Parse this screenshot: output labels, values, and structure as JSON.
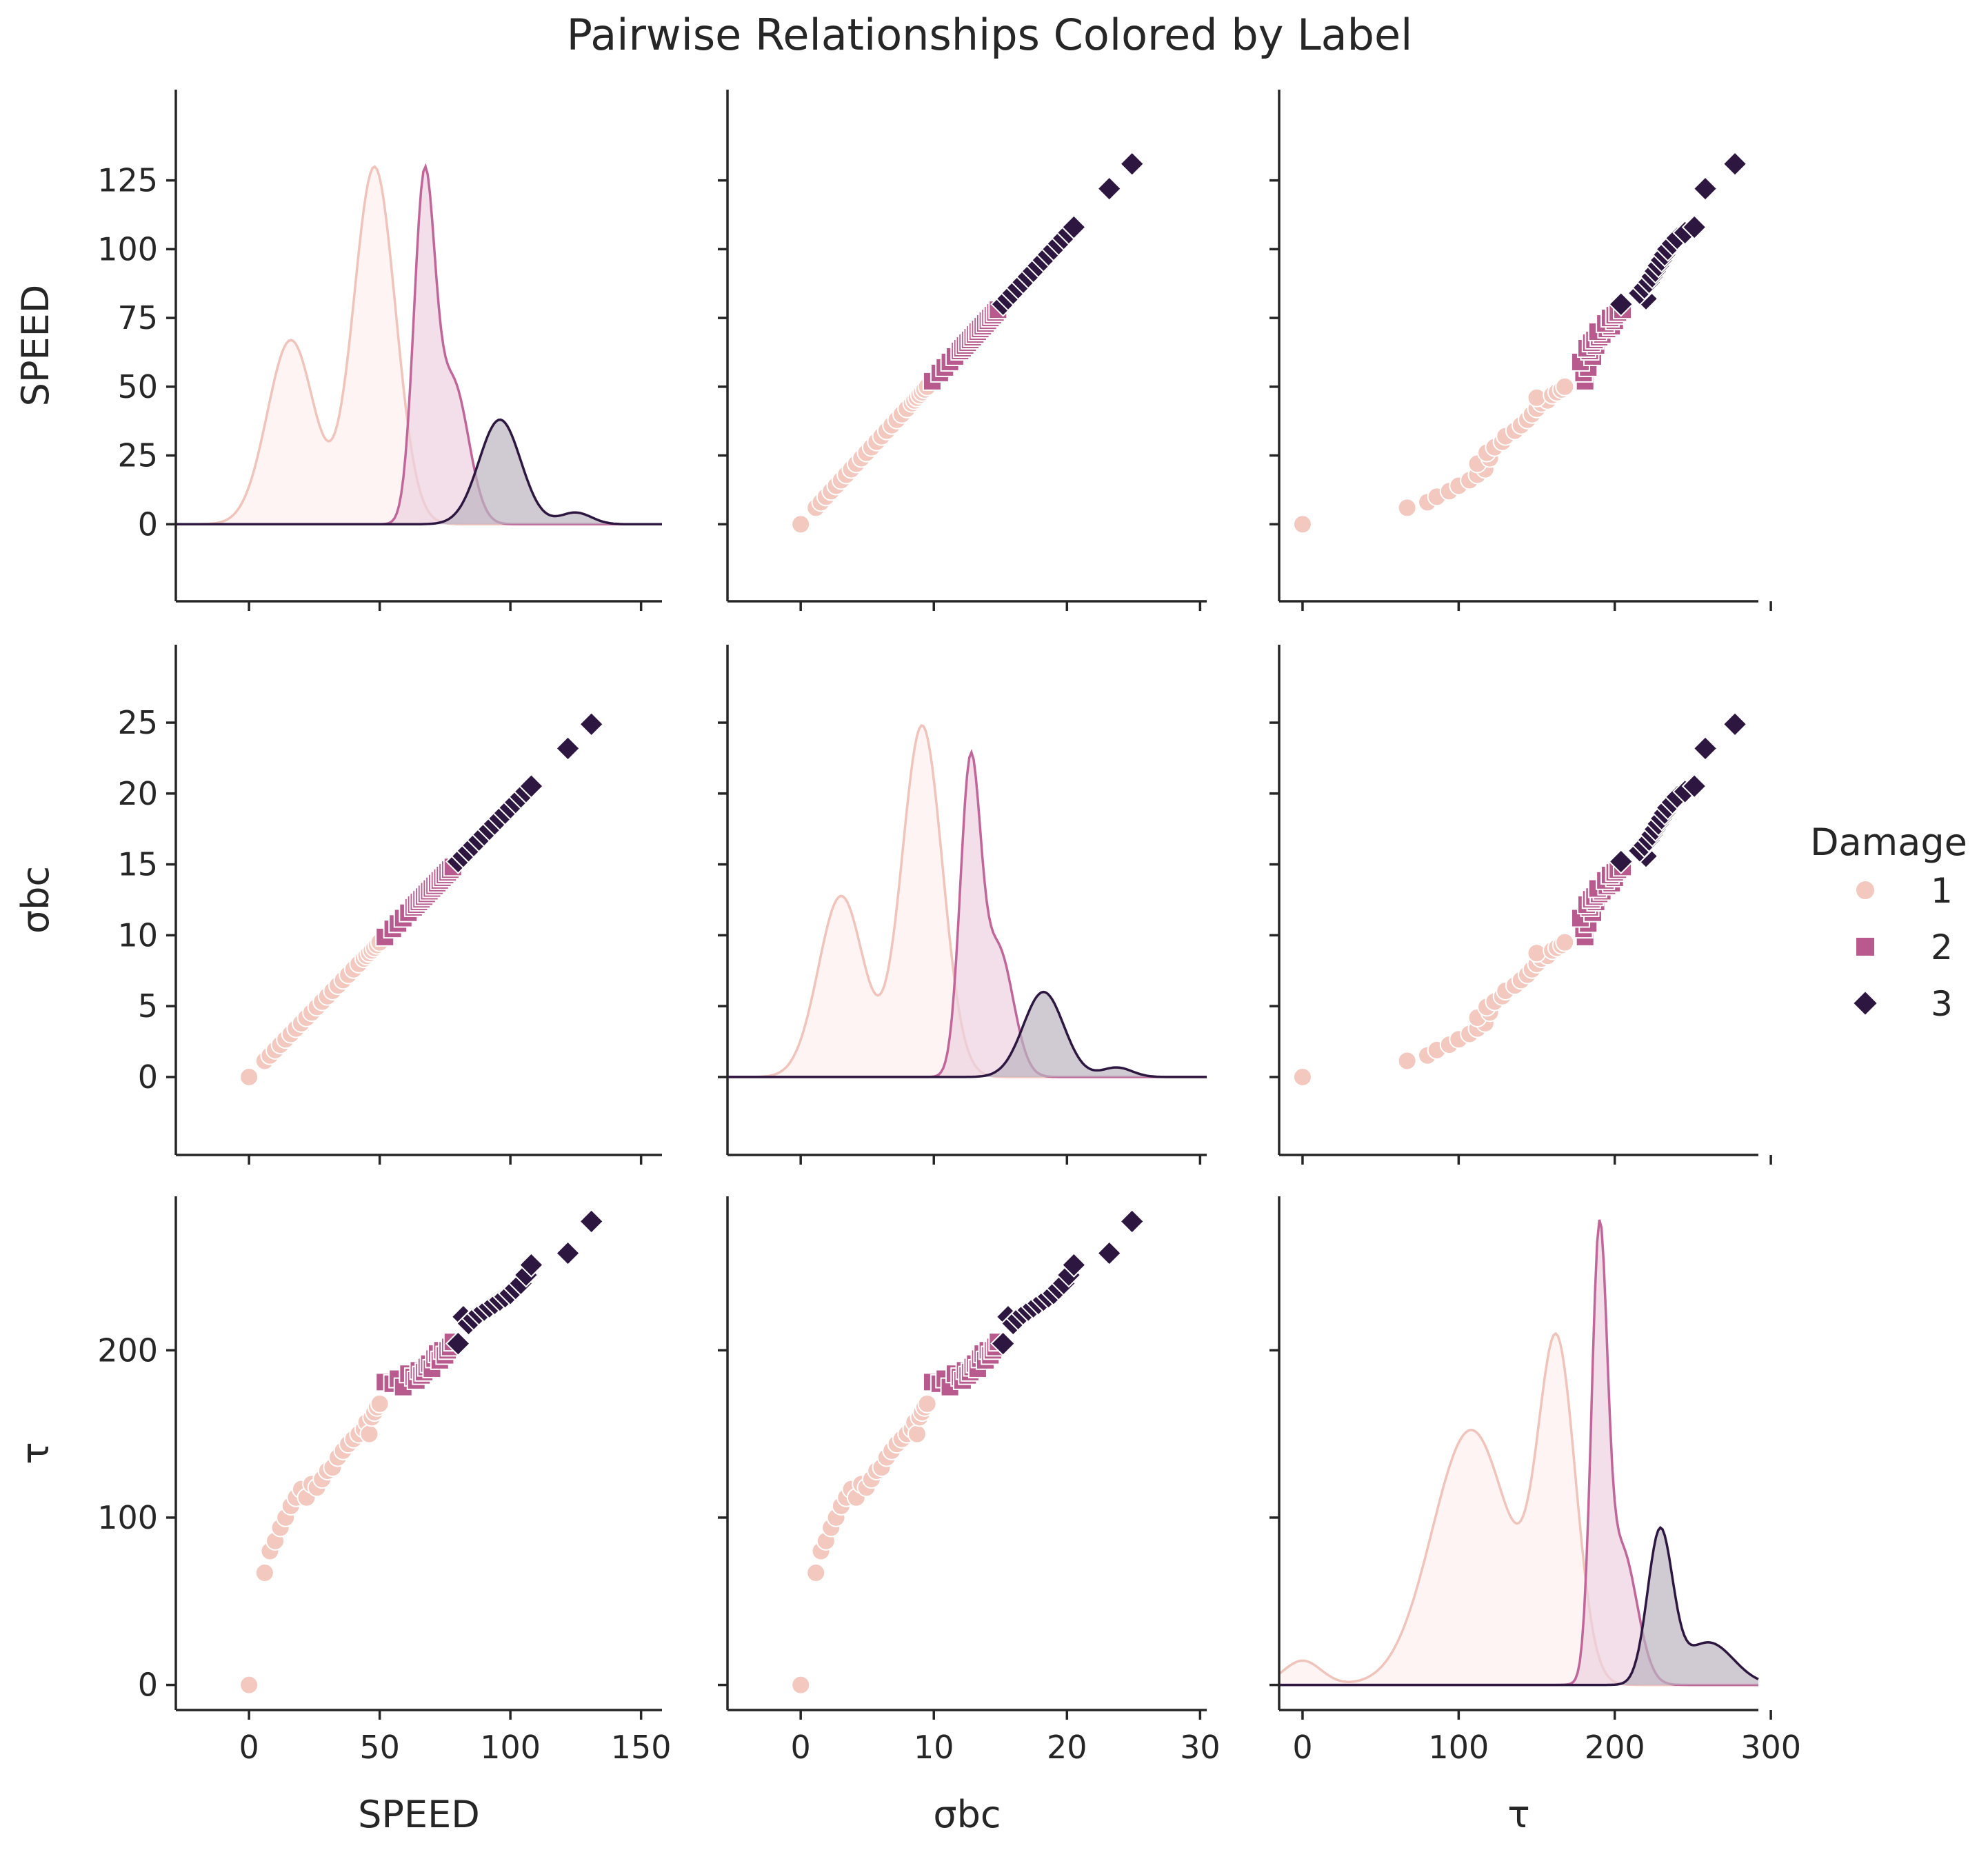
{
  "chart_data": {
    "type": "scatter",
    "kind": "pairplot",
    "title": "Pairwise Relationships Colored by Label",
    "variables": [
      "SPEED",
      "σbc",
      "τ"
    ],
    "axis_ranges": {
      "SPEED": [
        -28,
        158
      ],
      "σbc": [
        -5.5,
        30.5
      ],
      "τ": [
        -15,
        292
      ]
    },
    "ticks": {
      "SPEED": [
        0,
        25,
        50,
        75,
        100,
        125
      ],
      "SPEED_x": [
        0,
        50,
        100,
        150
      ],
      "σbc": [
        0,
        5,
        10,
        15,
        20,
        25
      ],
      "σbc_x": [
        0,
        10,
        20,
        30
      ],
      "τ": [
        0,
        100,
        200
      ],
      "τ_x": [
        0,
        100,
        200,
        300
      ]
    },
    "legend": {
      "title": "Damage",
      "placement": "right",
      "entries": [
        {
          "label": "1",
          "marker": "circle",
          "color": "#f3c8bf"
        },
        {
          "label": "2",
          "marker": "square",
          "color": "#b85a8e"
        },
        {
          "label": "3",
          "marker": "diamond",
          "color": "#2d1640"
        }
      ]
    },
    "colors": {
      "1": "#f3c8bf",
      "2": "#b85a8e",
      "3": "#2d1640",
      "line1": "#f0c4ba",
      "line2": "#c0669b",
      "line3": "#2d1640",
      "fill1": "#fdf0ee",
      "fill2": "#ecd1df",
      "fill3": "#bcb3c0"
    },
    "series": [
      {
        "name": "1",
        "speed": [
          0,
          6,
          8,
          10,
          12,
          14,
          16,
          18,
          20,
          22,
          24,
          26,
          28,
          30,
          32,
          34,
          36,
          38,
          40,
          42,
          44,
          45,
          46,
          47,
          48,
          49,
          50
        ],
        "tau": [
          0,
          67,
          80,
          86,
          94,
          100,
          107,
          112,
          117,
          112,
          120,
          118,
          123,
          128,
          130,
          136,
          140,
          144,
          147,
          150,
          153,
          157,
          150,
          160,
          163,
          166,
          168
        ]
      },
      {
        "name": "2",
        "speed": [
          52,
          55,
          57,
          59,
          61,
          63,
          64,
          65,
          66,
          67,
          68,
          69,
          70,
          71,
          72,
          73,
          74,
          75,
          76,
          77,
          78
        ],
        "tau": [
          181,
          180,
          183,
          178,
          186,
          184,
          182,
          188,
          185,
          187,
          190,
          192,
          189,
          195,
          198,
          194,
          200,
          197,
          200,
          202,
          205
        ]
      },
      {
        "name": "3",
        "speed": [
          80,
          82,
          84,
          86,
          88,
          90,
          92,
          94,
          96,
          98,
          100,
          102,
          104,
          106,
          108,
          122,
          131
        ],
        "tau": [
          204,
          220,
          216,
          219,
          222,
          224,
          226,
          228,
          230,
          232,
          234,
          237,
          240,
          245,
          251,
          258,
          277
        ]
      }
    ],
    "sigma_ratio": 0.19,
    "kde": {
      "SPEED": {
        "1": [
          {
            "mu": 16,
            "sigma": 9,
            "w": 0.34
          },
          {
            "mu": 48,
            "sigma": 8,
            "w": 0.66
          }
        ],
        "2": [
          {
            "mu": 67,
            "sigma": 4,
            "w": 0.7
          },
          {
            "mu": 78,
            "sigma": 6,
            "w": 0.3
          }
        ],
        "3": [
          {
            "mu": 96,
            "sigma": 8,
            "w": 0.9
          },
          {
            "mu": 125,
            "sigma": 6,
            "w": 0.1
          }
        ]
      },
      "τ": {
        "1": [
          {
            "mu": 0,
            "sigma": 12,
            "w": 0.04
          },
          {
            "mu": 108,
            "sigma": 25,
            "w": 0.42
          },
          {
            "mu": 163,
            "sigma": 12,
            "w": 0.54
          }
        ],
        "2": [
          {
            "mu": 190,
            "sigma": 5,
            "w": 0.75
          },
          {
            "mu": 204,
            "sigma": 10,
            "w": 0.25
          }
        ],
        "3": [
          {
            "mu": 229,
            "sigma": 8,
            "w": 0.78
          },
          {
            "mu": 260,
            "sigma": 16,
            "w": 0.22
          }
        ]
      },
      "peaks": {
        "SPEED": {
          "1": 130,
          "2": 130,
          "3": 38
        },
        "σbc": {
          "1": 24.8,
          "2": 22.9,
          "3": 6.0
        },
        "τ": {
          "1": 210,
          "2": 278,
          "3": 94
        }
      }
    }
  }
}
